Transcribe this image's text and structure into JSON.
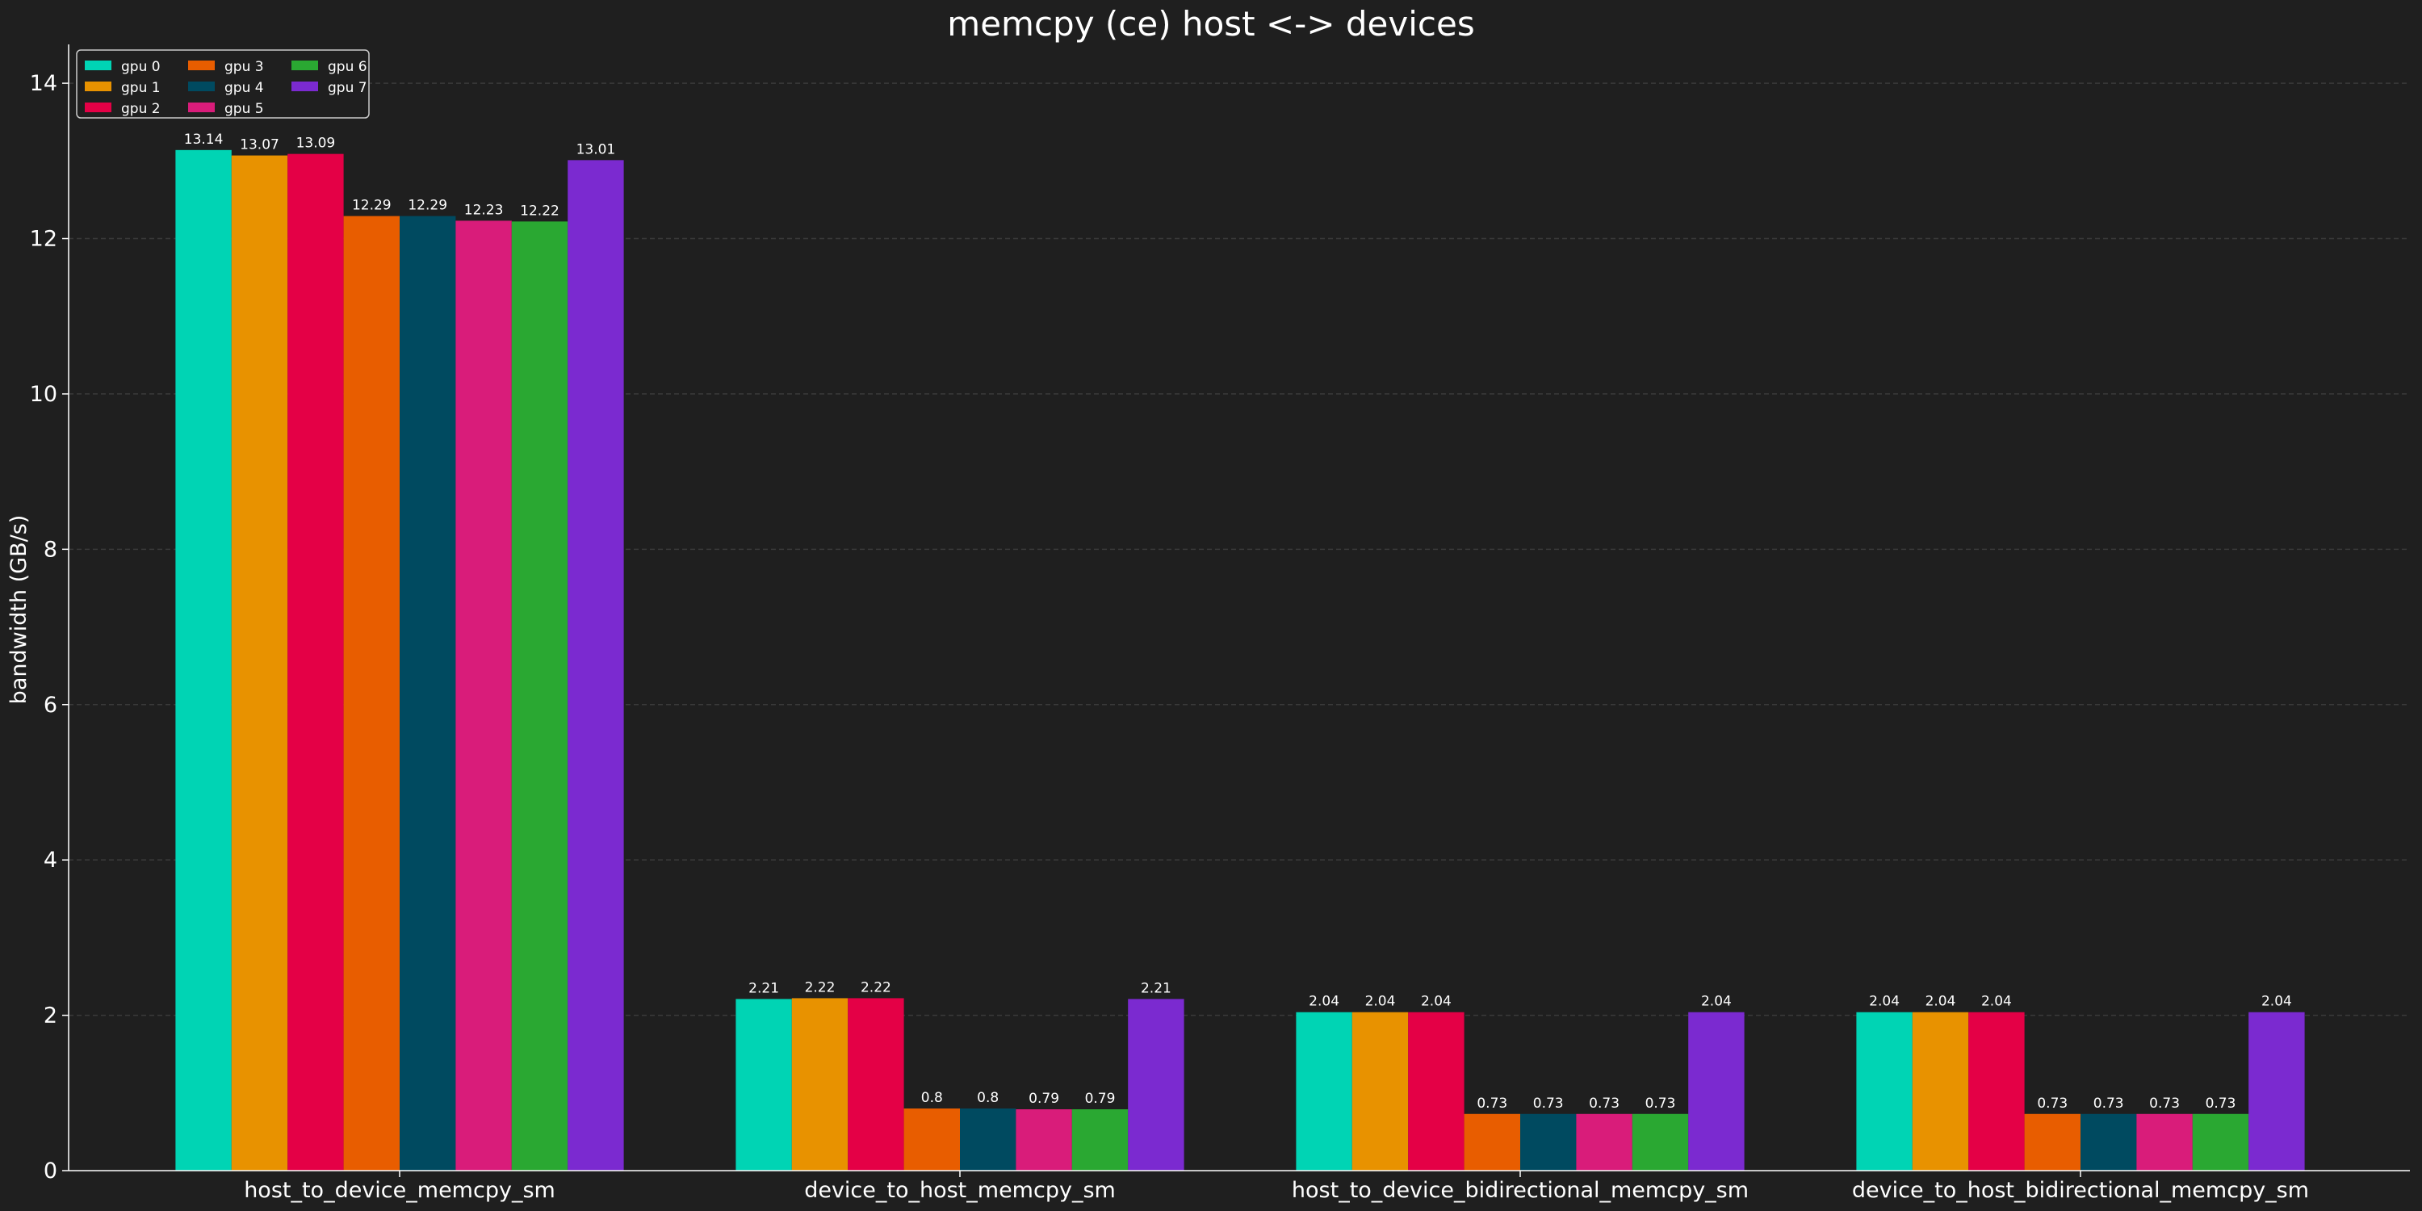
{
  "chart_data": {
    "type": "bar",
    "title": "memcpy (ce) host <-> devices",
    "xlabel": "",
    "ylabel": "bandwidth (GB/s)",
    "ylim": [
      0,
      14.5
    ],
    "yticks": [
      0,
      2,
      4,
      6,
      8,
      10,
      12,
      14
    ],
    "grid": "y",
    "legend_position": "top-left",
    "categories": [
      "host_to_device_memcpy_sm",
      "device_to_host_memcpy_sm",
      "host_to_device_bidirectional_memcpy_sm",
      "device_to_host_bidirectional_memcpy_sm"
    ],
    "series": [
      {
        "name": "gpu 0",
        "color": "#00d4b4",
        "values": [
          13.14,
          2.21,
          2.04,
          2.04
        ]
      },
      {
        "name": "gpu 1",
        "color": "#e89200",
        "values": [
          13.07,
          2.22,
          2.04,
          2.04
        ]
      },
      {
        "name": "gpu 2",
        "color": "#e40046",
        "values": [
          13.09,
          2.22,
          2.04,
          2.04
        ]
      },
      {
        "name": "gpu 3",
        "color": "#e85d00",
        "values": [
          12.29,
          0.8,
          0.73,
          0.73
        ]
      },
      {
        "name": "gpu 4",
        "color": "#004a60",
        "values": [
          12.29,
          0.8,
          0.73,
          0.73
        ]
      },
      {
        "name": "gpu 5",
        "color": "#d91c7a",
        "values": [
          12.23,
          0.79,
          0.73,
          0.73
        ]
      },
      {
        "name": "gpu 6",
        "color": "#2aa832",
        "values": [
          12.22,
          0.79,
          0.73,
          0.73
        ]
      },
      {
        "name": "gpu 7",
        "color": "#7b2ad0",
        "values": [
          13.01,
          2.21,
          2.04,
          2.04
        ]
      }
    ]
  }
}
